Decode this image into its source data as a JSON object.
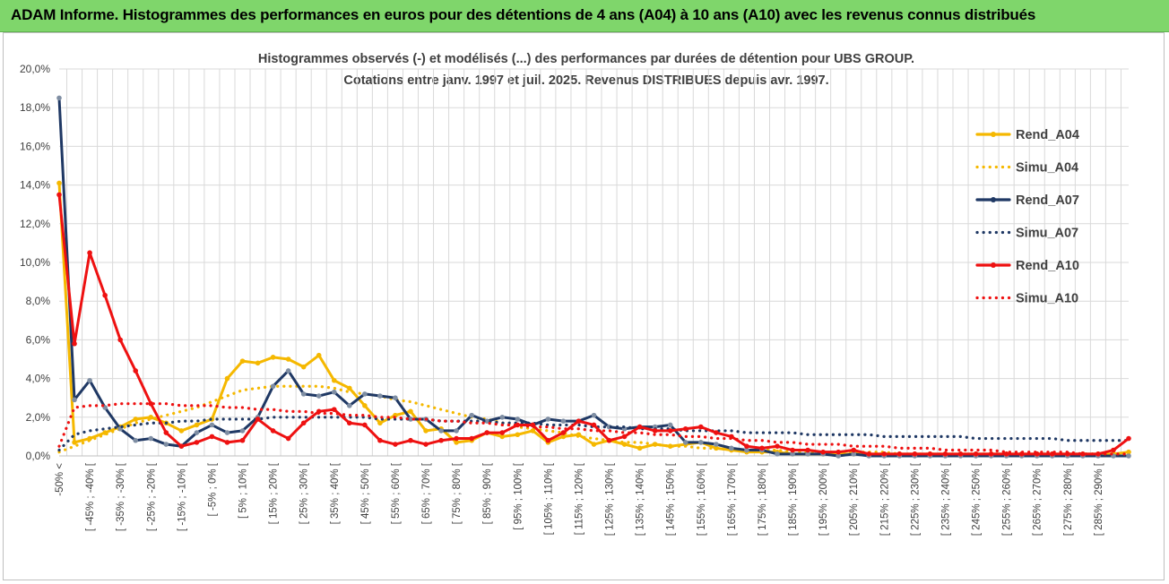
{
  "header": {
    "banner_text": "ADAM Informe. Histogrammes des performances en euros pour des détentions de 4 ans (A04) à 10 ans (A10) avec les revenus connus distribués"
  },
  "colors": {
    "banner_bg": "#7fd66b",
    "A04": "#f5b800",
    "A07": "#1f3864",
    "A10": "#ee1111",
    "grid": "#d9d9d9"
  },
  "chart_data": {
    "type": "line",
    "title": "Histogrammes observés (-) et modélisés (...) des performances par durées de détention pour UBS GROUP.",
    "subtitle": "Cotations entre janv. 1997 et juil. 2025. Revenus DISTRIBUES depuis avr. 1997.",
    "xlabel": "",
    "ylabel": "",
    "ylim": [
      0,
      20
    ],
    "y_ticks": [
      "0,0%",
      "2,0%",
      "4,0%",
      "6,0%",
      "8,0%",
      "10,0%",
      "12,0%",
      "14,0%",
      "16,0%",
      "18,0%",
      "20,0%"
    ],
    "grid": true,
    "legend_position": "right",
    "x_labels": [
      "-50% <",
      "[ -45% ; -40% [",
      "[ -35% ; -30% [",
      "[ -25% ; -20% [",
      "[ -15% ; -10% [",
      "[ -5% ; 0% [",
      "[ 5% ; 10% [",
      "[ 15% ; 20% [",
      "[ 25% ; 30% [",
      "[ 35% ; 40% [",
      "[ 45% ; 50% [",
      "[ 55% ; 60% [",
      "[ 65% ; 70% [",
      "[ 75% ; 80% [",
      "[ 85% ; 90% [",
      "[ 95% ; 100% [",
      "[ 105% ; 110% [",
      "[ 115% ; 120% [",
      "[ 125% ; 130% [",
      "[ 135% ; 140% [",
      "[ 145% ; 150% [",
      "[ 155% ; 160% [",
      "[ 165% ; 170% [",
      "[ 175% ; 180% [",
      "[ 185% ; 190% [",
      "[ 195% ; 200% [",
      "[ 205% ; 210% [",
      "[ 215% ; 220% [",
      "[ 225% ; 230% [",
      "[ 235% ; 240% [",
      "[ 245% ; 250% [",
      "[ 255% ; 260% [",
      "[ 265% ; 270% [",
      "[ 275% ; 280% [",
      "[ 285% ; 290% ["
    ],
    "series": [
      {
        "name": "Rend_A04",
        "style": "solid",
        "color": "#f5b800",
        "values": [
          14.1,
          0.7,
          0.9,
          1.2,
          1.5,
          1.9,
          2.0,
          1.7,
          1.3,
          1.6,
          1.9,
          4.0,
          4.9,
          4.8,
          5.1,
          5.0,
          4.6,
          5.2,
          3.9,
          3.5,
          2.6,
          1.7,
          2.1,
          2.3,
          1.3,
          1.4,
          0.7,
          0.8,
          1.2,
          1.0,
          1.1,
          1.3,
          0.7,
          1.0,
          1.1,
          0.6,
          0.8,
          0.6,
          0.4,
          0.6,
          0.5,
          0.6,
          0.7,
          0.4,
          0.3,
          0.2,
          0.2,
          0.2,
          0.1,
          0.1,
          0.1,
          0.1,
          0.1,
          0.1,
          0.1,
          0.1,
          0.1,
          0.1,
          0.1,
          0.1,
          0.1,
          0.1,
          0.1,
          0.1,
          0.1,
          0.1,
          0.1,
          0.1,
          0.1,
          0.1,
          0.2
        ]
      },
      {
        "name": "Simu_A04",
        "style": "dotted",
        "color": "#f5b800",
        "values": [
          0.2,
          0.5,
          0.8,
          1.1,
          1.4,
          1.7,
          1.9,
          2.1,
          2.3,
          2.5,
          2.8,
          3.1,
          3.4,
          3.5,
          3.6,
          3.6,
          3.6,
          3.6,
          3.5,
          3.3,
          3.2,
          3.1,
          2.9,
          2.8,
          2.6,
          2.4,
          2.2,
          2.0,
          1.9,
          1.7,
          1.5,
          1.4,
          1.3,
          1.2,
          1.0,
          0.9,
          0.8,
          0.7,
          0.7,
          0.6,
          0.5,
          0.5,
          0.4,
          0.4,
          0.3,
          0.3,
          0.3,
          0.3,
          0.2,
          0.2,
          0.2,
          0.2,
          0.2,
          0.2,
          0.2,
          0.1,
          0.1,
          0.1,
          0.1,
          0.1,
          0.1,
          0.1,
          0.1,
          0.1,
          0.1,
          0.1,
          0.1,
          0.1,
          0.1,
          0.1,
          0.1
        ]
      },
      {
        "name": "Rend_A07",
        "style": "solid",
        "color": "#1f3864",
        "values": [
          18.5,
          2.9,
          3.9,
          2.5,
          1.4,
          0.8,
          0.9,
          0.6,
          0.5,
          1.2,
          1.6,
          1.2,
          1.3,
          2.0,
          3.6,
          4.4,
          3.2,
          3.1,
          3.3,
          2.6,
          3.2,
          3.1,
          3.0,
          1.9,
          1.9,
          1.3,
          1.3,
          2.1,
          1.8,
          2.0,
          1.9,
          1.6,
          1.9,
          1.8,
          1.8,
          2.1,
          1.5,
          1.4,
          1.5,
          1.5,
          1.6,
          0.7,
          0.7,
          0.6,
          0.4,
          0.3,
          0.3,
          0.1,
          0.1,
          0.1,
          0.1,
          0.0,
          0.1,
          0.0,
          0.0,
          0.0,
          0.0,
          0.0,
          0.0,
          0.0,
          0.0,
          0.0,
          0.0,
          0.0,
          0.0,
          0.0,
          0.0,
          0.0,
          0.0,
          0.0,
          0.0
        ]
      },
      {
        "name": "Simu_A07",
        "style": "dotted",
        "color": "#1f3864",
        "values": [
          0.3,
          1.1,
          1.3,
          1.4,
          1.5,
          1.6,
          1.7,
          1.7,
          1.8,
          1.8,
          1.9,
          1.9,
          1.9,
          1.9,
          2.0,
          2.0,
          2.0,
          2.0,
          2.0,
          2.0,
          2.0,
          1.9,
          1.9,
          1.9,
          1.9,
          1.8,
          1.8,
          1.8,
          1.8,
          1.7,
          1.7,
          1.7,
          1.6,
          1.6,
          1.6,
          1.5,
          1.5,
          1.5,
          1.4,
          1.4,
          1.4,
          1.3,
          1.3,
          1.3,
          1.3,
          1.2,
          1.2,
          1.2,
          1.2,
          1.1,
          1.1,
          1.1,
          1.1,
          1.1,
          1.0,
          1.0,
          1.0,
          1.0,
          1.0,
          1.0,
          0.9,
          0.9,
          0.9,
          0.9,
          0.9,
          0.9,
          0.8,
          0.8,
          0.8,
          0.8,
          0.8
        ]
      },
      {
        "name": "Rend_A10",
        "style": "solid",
        "color": "#ee1111",
        "values": [
          13.5,
          5.8,
          10.5,
          8.3,
          6.0,
          4.4,
          2.7,
          1.2,
          0.5,
          0.7,
          1.0,
          0.7,
          0.8,
          1.9,
          1.3,
          0.9,
          1.7,
          2.3,
          2.4,
          1.7,
          1.6,
          0.8,
          0.6,
          0.8,
          0.6,
          0.8,
          0.9,
          0.9,
          1.2,
          1.2,
          1.6,
          1.6,
          0.8,
          1.2,
          1.8,
          1.6,
          0.8,
          1.0,
          1.5,
          1.3,
          1.3,
          1.4,
          1.5,
          1.2,
          1.0,
          0.5,
          0.4,
          0.5,
          0.3,
          0.3,
          0.2,
          0.2,
          0.3,
          0.1,
          0.1,
          0.1,
          0.1,
          0.1,
          0.1,
          0.1,
          0.1,
          0.1,
          0.1,
          0.1,
          0.1,
          0.1,
          0.1,
          0.1,
          0.1,
          0.3,
          0.9
        ]
      },
      {
        "name": "Simu_A10",
        "style": "dotted",
        "color": "#ee1111",
        "values": [
          0.5,
          2.5,
          2.6,
          2.6,
          2.7,
          2.7,
          2.7,
          2.7,
          2.6,
          2.6,
          2.6,
          2.5,
          2.5,
          2.4,
          2.4,
          2.3,
          2.3,
          2.2,
          2.2,
          2.1,
          2.1,
          2.0,
          2.0,
          1.9,
          1.9,
          1.8,
          1.8,
          1.7,
          1.7,
          1.6,
          1.6,
          1.5,
          1.5,
          1.4,
          1.4,
          1.3,
          1.3,
          1.2,
          1.2,
          1.1,
          1.1,
          1.0,
          1.0,
          0.9,
          0.9,
          0.8,
          0.8,
          0.7,
          0.7,
          0.6,
          0.6,
          0.6,
          0.5,
          0.5,
          0.5,
          0.4,
          0.4,
          0.4,
          0.3,
          0.3,
          0.3,
          0.3,
          0.2,
          0.2,
          0.2,
          0.2,
          0.2,
          0.1,
          0.1,
          0.1,
          0.1
        ]
      }
    ]
  }
}
